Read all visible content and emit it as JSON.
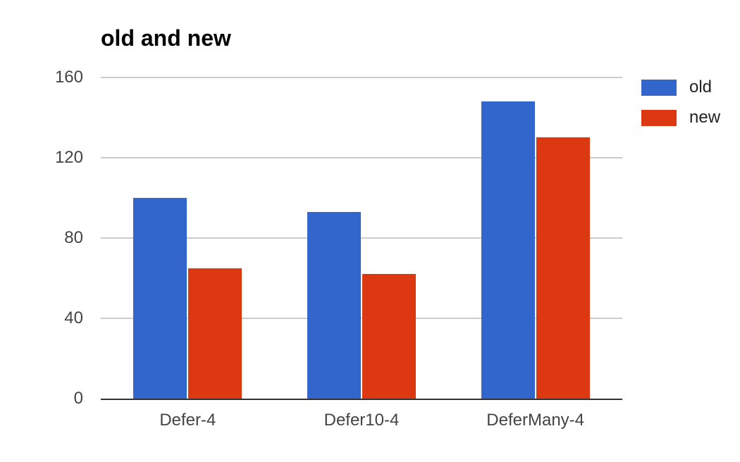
{
  "chart_data": {
    "type": "bar",
    "title": "old and new",
    "categories": [
      "Defer-4",
      "Defer10-4",
      "DeferMany-4"
    ],
    "series": [
      {
        "name": "old",
        "color": "#3366CC",
        "values": [
          100,
          93,
          148
        ]
      },
      {
        "name": "new",
        "color": "#DC3912",
        "values": [
          65,
          62,
          130
        ]
      }
    ],
    "ylim": [
      0,
      160
    ],
    "yticks": [
      0,
      40,
      80,
      120,
      160
    ],
    "xlabel": "",
    "ylabel": "",
    "grid": true,
    "legend_position": "right"
  },
  "style_colors": {
    "background": "#ffffff",
    "grid": "#cccccc",
    "axis": "#333333",
    "tick_text": "#444444",
    "title_text": "#000000"
  }
}
